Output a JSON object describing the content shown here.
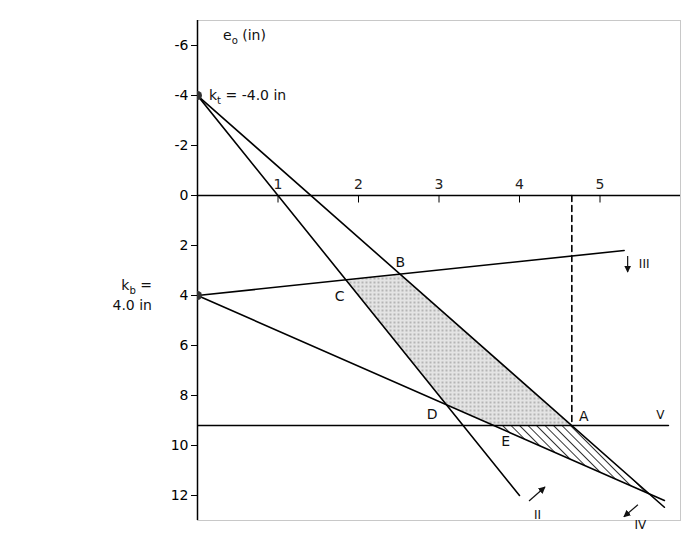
{
  "chart_data": {
    "type": "line",
    "xlim": [
      0,
      6
    ],
    "ylim": [
      -7,
      13
    ],
    "xticks": [
      1,
      2,
      3,
      4,
      5
    ],
    "yticks": [
      -6,
      -4,
      -2,
      0,
      2,
      4,
      6,
      8,
      10,
      12
    ],
    "y_label": [
      {
        "text": "e"
      },
      {
        "text": "o",
        "sub": true
      },
      {
        "text": " (in)"
      }
    ],
    "series": [
      {
        "name": "II",
        "color": "#000000",
        "x": [
          0,
          4.0
        ],
        "y": [
          -4,
          12
        ]
      },
      {
        "name": "III",
        "color": "#000000",
        "x": [
          0,
          5.3
        ],
        "y": [
          4,
          2.2
        ]
      },
      {
        "name": "IV",
        "color": "#000000",
        "x": [
          0,
          5.8
        ],
        "y": [
          -4,
          12.47
        ]
      },
      {
        "name": "V",
        "color": "#000000",
        "x": [
          0,
          5.85
        ],
        "y": [
          9.2,
          9.2
        ]
      },
      {
        "color": "#000000",
        "x": [
          0,
          5.8
        ],
        "y": [
          4,
          12.2
        ]
      },
      {
        "color": "#000000",
        "line_style": "dashed",
        "x": [
          4.65,
          4.65
        ],
        "y": [
          0,
          9.2
        ]
      }
    ],
    "points": [
      {
        "label": "A",
        "x": 4.65,
        "y": 9.2
      },
      {
        "label": "B",
        "x": 2.52,
        "y": 3.15
      },
      {
        "label": "C",
        "x": 1.84,
        "y": 3.37
      },
      {
        "label": "D",
        "x": 3.09,
        "y": 8.38
      },
      {
        "label": "E",
        "x": 3.68,
        "y": 9.2
      }
    ],
    "regions": [
      {
        "type": "stippled",
        "color": "#7a7a7a",
        "vertices": [
          [
            1.84,
            3.37
          ],
          [
            2.52,
            3.15
          ],
          [
            4.65,
            9.2
          ],
          [
            3.68,
            9.2
          ],
          [
            3.09,
            8.38
          ]
        ]
      },
      {
        "type": "hatched",
        "color": "#000000",
        "vertices": [
          [
            3.68,
            9.2
          ],
          [
            4.65,
            9.2
          ],
          [
            5.61,
            11.93
          ]
        ]
      }
    ],
    "annotations": [
      {
        "x": 0,
        "y": -4,
        "marker": "dot",
        "lines": [
          [
            {
              "text": "k"
            },
            {
              "text": "t",
              "sub": true
            },
            {
              "text": " = -4.0 in"
            }
          ]
        ]
      },
      {
        "x": 0,
        "y": 4,
        "marker": "dot",
        "lines": [
          [
            {
              "text": "k"
            },
            {
              "text": "b",
              "sub": true
            },
            {
              "text": " ="
            }
          ],
          [
            {
              "text": "4.0 in"
            }
          ]
        ]
      }
    ]
  }
}
